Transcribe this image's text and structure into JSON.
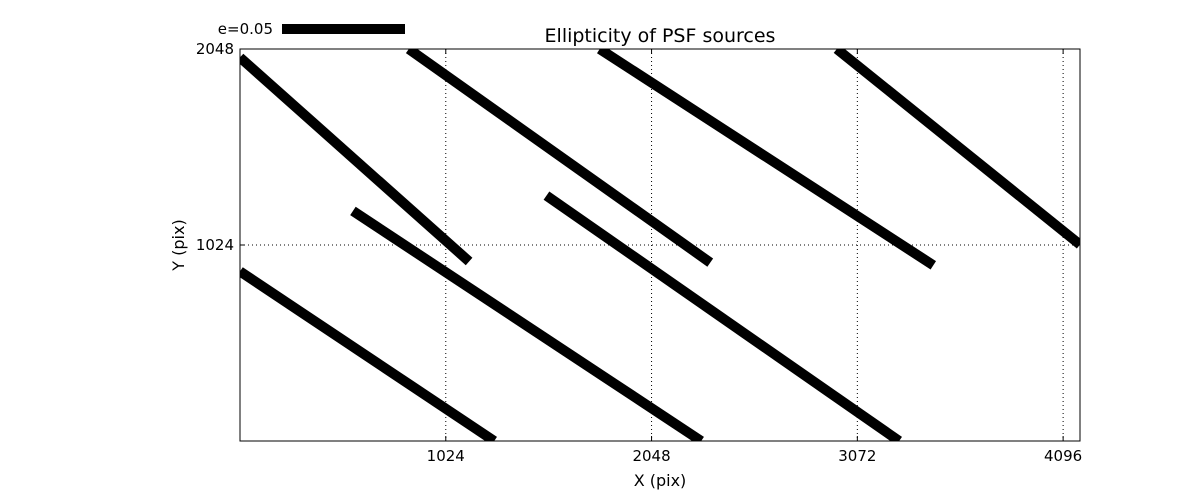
{
  "chart_data": {
    "type": "line",
    "title": "Ellipticity of PSF sources",
    "xlabel": "X (pix)",
    "ylabel": "Y (pix)",
    "xlim": [
      0,
      4180
    ],
    "ylim": [
      0,
      2048
    ],
    "xticks": [
      1024,
      2048,
      3072,
      4096
    ],
    "xtick_labels": [
      "1024",
      "2048",
      "3072",
      "4096"
    ],
    "yticks": [
      1024,
      2048
    ],
    "ytick_labels": [
      "1024",
      "2048"
    ],
    "grid": true,
    "grid_style": "dotted",
    "legend": {
      "label": "e=0.05",
      "placement": "top-left outside plot"
    },
    "line_color": "#000000",
    "segments": [
      {
        "x1": 0,
        "y1": 2004,
        "x2": 1140,
        "y2": 938
      },
      {
        "x1": 840,
        "y1": 2048,
        "x2": 2340,
        "y2": 932
      },
      {
        "x1": 1790,
        "y1": 2048,
        "x2": 3450,
        "y2": 918
      },
      {
        "x1": 2970,
        "y1": 2048,
        "x2": 4180,
        "y2": 1026
      },
      {
        "x1": 562,
        "y1": 1202,
        "x2": 2295,
        "y2": 0
      },
      {
        "x1": 1525,
        "y1": 1282,
        "x2": 3280,
        "y2": 0
      },
      {
        "x1": 0,
        "y1": 886,
        "x2": 1265,
        "y2": 0
      }
    ]
  }
}
